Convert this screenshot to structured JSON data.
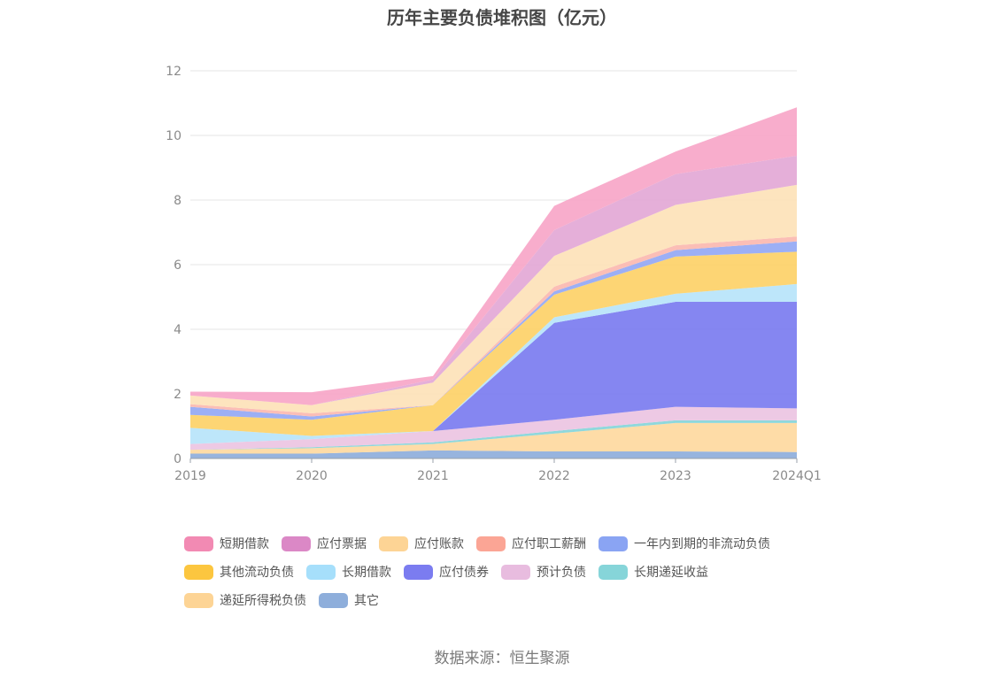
{
  "title": "历年主要负债堆积图（亿元）",
  "source_text": "数据来源：恒生聚源",
  "chart_data": {
    "type": "area",
    "stacked": true,
    "title": "历年主要负债堆积图（亿元）",
    "xlabel": "",
    "ylabel": "",
    "x": [
      "2019",
      "2020",
      "2021",
      "2022",
      "2023",
      "2024Q1"
    ],
    "ylim": [
      0,
      12
    ],
    "yticks": [
      0,
      2,
      4,
      6,
      8,
      10,
      12
    ],
    "grid": true,
    "legend_position": "bottom",
    "series": [
      {
        "name": "其它",
        "color": "#8eaedb",
        "values": [
          0.15,
          0.15,
          0.25,
          0.22,
          0.22,
          0.2
        ]
      },
      {
        "name": "递延所得税负债",
        "color": "#fed9a0",
        "values": [
          0.12,
          0.17,
          0.2,
          0.55,
          0.88,
          0.9
        ]
      },
      {
        "name": "长期递延收益",
        "color": "#86d5d9",
        "values": [
          0.0,
          0.03,
          0.05,
          0.08,
          0.08,
          0.08
        ]
      },
      {
        "name": "预计负债",
        "color": "#ecc4e2",
        "values": [
          0.18,
          0.25,
          0.35,
          0.35,
          0.42,
          0.37
        ]
      },
      {
        "name": "应付债券",
        "color": "#7b7cf0",
        "values": [
          0.0,
          0.0,
          0.0,
          3.0,
          3.25,
          3.3
        ]
      },
      {
        "name": "长期借款",
        "color": "#b7e4fa",
        "values": [
          0.5,
          0.1,
          0.0,
          0.17,
          0.25,
          0.55
        ]
      },
      {
        "name": "其他流动负债",
        "color": "#fdd168",
        "values": [
          0.4,
          0.5,
          0.8,
          0.7,
          1.15,
          1.0
        ]
      },
      {
        "name": "一年内到期的非流动负债",
        "color": "#94a8f4",
        "values": [
          0.25,
          0.1,
          0.0,
          0.1,
          0.2,
          0.32
        ]
      },
      {
        "name": "应付职工薪酬",
        "color": "#fbb9b0",
        "values": [
          0.08,
          0.1,
          0.0,
          0.15,
          0.15,
          0.15
        ]
      },
      {
        "name": "应付账款",
        "color": "#fde2b8",
        "values": [
          0.27,
          0.25,
          0.7,
          0.95,
          1.25,
          1.6
        ]
      },
      {
        "name": "应付票据",
        "color": "#e3a8d6",
        "values": [
          0.0,
          0.0,
          0.1,
          0.8,
          0.95,
          0.9
        ]
      },
      {
        "name": "短期借款",
        "color": "#f7a6c8",
        "values": [
          0.12,
          0.4,
          0.1,
          0.75,
          0.7,
          1.5
        ]
      }
    ]
  },
  "legend": [
    {
      "name": "短期借款",
      "color": "#f28ab3"
    },
    {
      "name": "应付票据",
      "color": "#db88c6"
    },
    {
      "name": "应付账款",
      "color": "#fdd495"
    },
    {
      "name": "应付职工薪酬",
      "color": "#fba595"
    },
    {
      "name": "一年内到期的非流动负债",
      "color": "#8aa4f3"
    },
    {
      "name": "其他流动负债",
      "color": "#fcc63f"
    },
    {
      "name": "长期借款",
      "color": "#a6dffb"
    },
    {
      "name": "应付债券",
      "color": "#7b7cf0"
    },
    {
      "name": "预计负债",
      "color": "#e8bcdf"
    },
    {
      "name": "长期递延收益",
      "color": "#86d5d9"
    },
    {
      "name": "递延所得税负债",
      "color": "#fdd495"
    },
    {
      "name": "其它",
      "color": "#8eaedb"
    }
  ]
}
